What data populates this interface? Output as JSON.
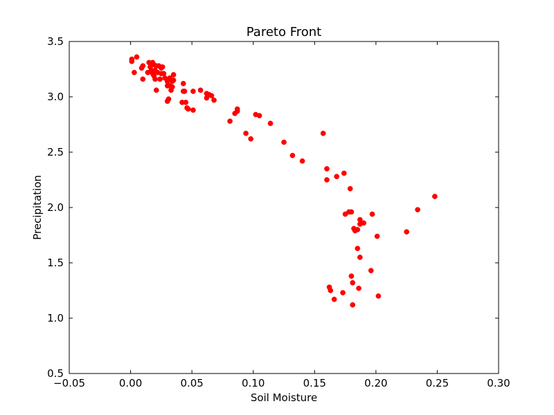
{
  "chart_data": {
    "type": "scatter",
    "title": "Pareto Front",
    "xlabel": "Soil Moisture",
    "ylabel": "Precipitation",
    "xlim": [
      -0.05,
      0.3
    ],
    "ylim": [
      0.5,
      3.5
    ],
    "x_ticks": [
      -0.05,
      0.0,
      0.05,
      0.1,
      0.15,
      0.2,
      0.25,
      0.3
    ],
    "x_tick_labels": [
      "−0.05",
      "0.00",
      "0.05",
      "0.10",
      "0.15",
      "0.20",
      "0.25",
      "0.30"
    ],
    "y_ticks": [
      0.5,
      1.0,
      1.5,
      2.0,
      2.5,
      3.0,
      3.5
    ],
    "y_tick_labels": [
      "0.5",
      "1.0",
      "1.5",
      "2.0",
      "2.5",
      "3.0",
      "3.5"
    ],
    "grid": false,
    "marker_color": "#ff0000",
    "series": [
      {
        "points": [
          [
            0.001,
            3.34
          ],
          [
            0.001,
            3.32
          ],
          [
            0.003,
            3.22
          ],
          [
            0.005,
            3.36
          ],
          [
            0.009,
            3.26
          ],
          [
            0.01,
            3.28
          ],
          [
            0.01,
            3.16
          ],
          [
            0.014,
            3.22
          ],
          [
            0.015,
            3.31
          ],
          [
            0.016,
            3.27
          ],
          [
            0.017,
            3.24
          ],
          [
            0.018,
            3.21
          ],
          [
            0.018,
            3.31
          ],
          [
            0.019,
            3.29
          ],
          [
            0.019,
            3.19
          ],
          [
            0.02,
            3.24
          ],
          [
            0.02,
            3.16
          ],
          [
            0.021,
            3.28
          ],
          [
            0.021,
            3.06
          ],
          [
            0.022,
            3.22
          ],
          [
            0.023,
            3.28
          ],
          [
            0.024,
            3.16
          ],
          [
            0.025,
            3.26
          ],
          [
            0.025,
            3.21
          ],
          [
            0.026,
            3.27
          ],
          [
            0.027,
            3.21
          ],
          [
            0.028,
            3.17
          ],
          [
            0.03,
            3.14
          ],
          [
            0.03,
            3.1
          ],
          [
            0.03,
            2.96
          ],
          [
            0.031,
            2.98
          ],
          [
            0.032,
            3.17
          ],
          [
            0.032,
            3.1
          ],
          [
            0.033,
            3.06
          ],
          [
            0.034,
            3.09
          ],
          [
            0.034,
            3.14
          ],
          [
            0.035,
            3.2
          ],
          [
            0.035,
            3.15
          ],
          [
            0.042,
            2.95
          ],
          [
            0.043,
            3.05
          ],
          [
            0.043,
            3.12
          ],
          [
            0.044,
            3.05
          ],
          [
            0.045,
            2.95
          ],
          [
            0.046,
            2.9
          ],
          [
            0.047,
            2.89
          ],
          [
            0.051,
            3.05
          ],
          [
            0.051,
            2.88
          ],
          [
            0.057,
            3.06
          ],
          [
            0.062,
            3.03
          ],
          [
            0.062,
            2.99
          ],
          [
            0.063,
            3.02
          ],
          [
            0.064,
            3.02
          ],
          [
            0.066,
            3.01
          ],
          [
            0.068,
            2.97
          ],
          [
            0.081,
            2.78
          ],
          [
            0.085,
            2.85
          ],
          [
            0.087,
            2.87
          ],
          [
            0.087,
            2.89
          ],
          [
            0.094,
            2.67
          ],
          [
            0.098,
            2.62
          ],
          [
            0.102,
            2.84
          ],
          [
            0.105,
            2.83
          ],
          [
            0.114,
            2.76
          ],
          [
            0.125,
            2.59
          ],
          [
            0.132,
            2.47
          ],
          [
            0.14,
            2.42
          ],
          [
            0.157,
            2.67
          ],
          [
            0.16,
            2.35
          ],
          [
            0.16,
            2.25
          ],
          [
            0.168,
            2.28
          ],
          [
            0.174,
            2.31
          ],
          [
            0.175,
            1.94
          ],
          [
            0.178,
            1.96
          ],
          [
            0.179,
            2.17
          ],
          [
            0.18,
            1.96
          ],
          [
            0.182,
            1.81
          ],
          [
            0.183,
            1.79
          ],
          [
            0.185,
            1.63
          ],
          [
            0.185,
            1.8
          ],
          [
            0.187,
            1.89
          ],
          [
            0.187,
            1.55
          ],
          [
            0.187,
            1.85
          ],
          [
            0.19,
            1.86
          ],
          [
            0.197,
            1.94
          ],
          [
            0.201,
            1.74
          ],
          [
            0.196,
            1.43
          ],
          [
            0.18,
            1.38
          ],
          [
            0.181,
            1.32
          ],
          [
            0.186,
            1.27
          ],
          [
            0.162,
            1.28
          ],
          [
            0.163,
            1.25
          ],
          [
            0.173,
            1.23
          ],
          [
            0.166,
            1.17
          ],
          [
            0.181,
            1.12
          ],
          [
            0.202,
            1.2
          ],
          [
            0.225,
            1.78
          ],
          [
            0.234,
            1.98
          ],
          [
            0.248,
            2.1
          ]
        ]
      }
    ]
  }
}
